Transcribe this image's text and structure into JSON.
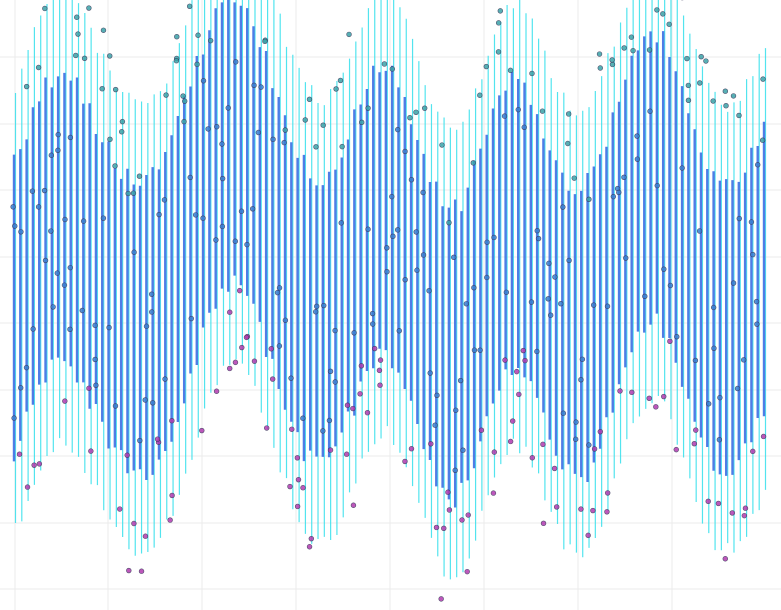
{
  "chart_data": {
    "type": "scatter",
    "description_free": true,
    "title": "",
    "xlabel": "",
    "ylabel": "",
    "xlim": [
      0,
      1
    ],
    "ylim": [
      0,
      1
    ],
    "grid": true,
    "legend": "none",
    "error_bar_style": "vertical ranges per index with outer (cyan) and inner (blue) whiskers",
    "n_points": 120,
    "colors": {
      "outer_range": "#35e0ec",
      "inner_range": "#3d6fe3",
      "point_low": "#b23ab0",
      "point_mid": "#3b7fd0",
      "point_high": "#3aa2a8",
      "grid": "#ebebeb",
      "background": "#ffffff"
    },
    "series": [
      {
        "role": "center",
        "values": [
          0.48,
          0.5,
          0.53,
          0.56,
          0.58,
          0.6,
          0.61,
          0.62,
          0.62,
          0.61,
          0.6,
          0.58,
          0.56,
          0.54,
          0.52,
          0.5,
          0.48,
          0.47,
          0.46,
          0.45,
          0.45,
          0.45,
          0.46,
          0.47,
          0.49,
          0.51,
          0.54,
          0.57,
          0.6,
          0.63,
          0.66,
          0.69,
          0.71,
          0.73,
          0.74,
          0.74,
          0.73,
          0.72,
          0.7,
          0.67,
          0.64,
          0.61,
          0.58,
          0.55,
          0.52,
          0.5,
          0.48,
          0.47,
          0.46,
          0.46,
          0.47,
          0.48,
          0.5,
          0.53,
          0.55,
          0.58,
          0.6,
          0.62,
          0.63,
          0.63,
          0.62,
          0.6,
          0.58,
          0.55,
          0.52,
          0.49,
          0.46,
          0.44,
          0.42,
          0.41,
          0.41,
          0.42,
          0.44,
          0.47,
          0.5,
          0.53,
          0.56,
          0.58,
          0.6,
          0.61,
          0.61,
          0.6,
          0.58,
          0.56,
          0.53,
          0.5,
          0.48,
          0.46,
          0.45,
          0.44,
          0.44,
          0.45,
          0.47,
          0.49,
          0.52,
          0.55,
          0.58,
          0.61,
          0.64,
          0.66,
          0.67,
          0.68,
          0.68,
          0.67,
          0.65,
          0.62,
          0.59,
          0.56,
          0.53,
          0.5,
          0.48,
          0.46,
          0.45,
          0.45,
          0.45,
          0.46,
          0.48,
          0.5,
          0.52,
          0.54
        ]
      }
    ]
  }
}
